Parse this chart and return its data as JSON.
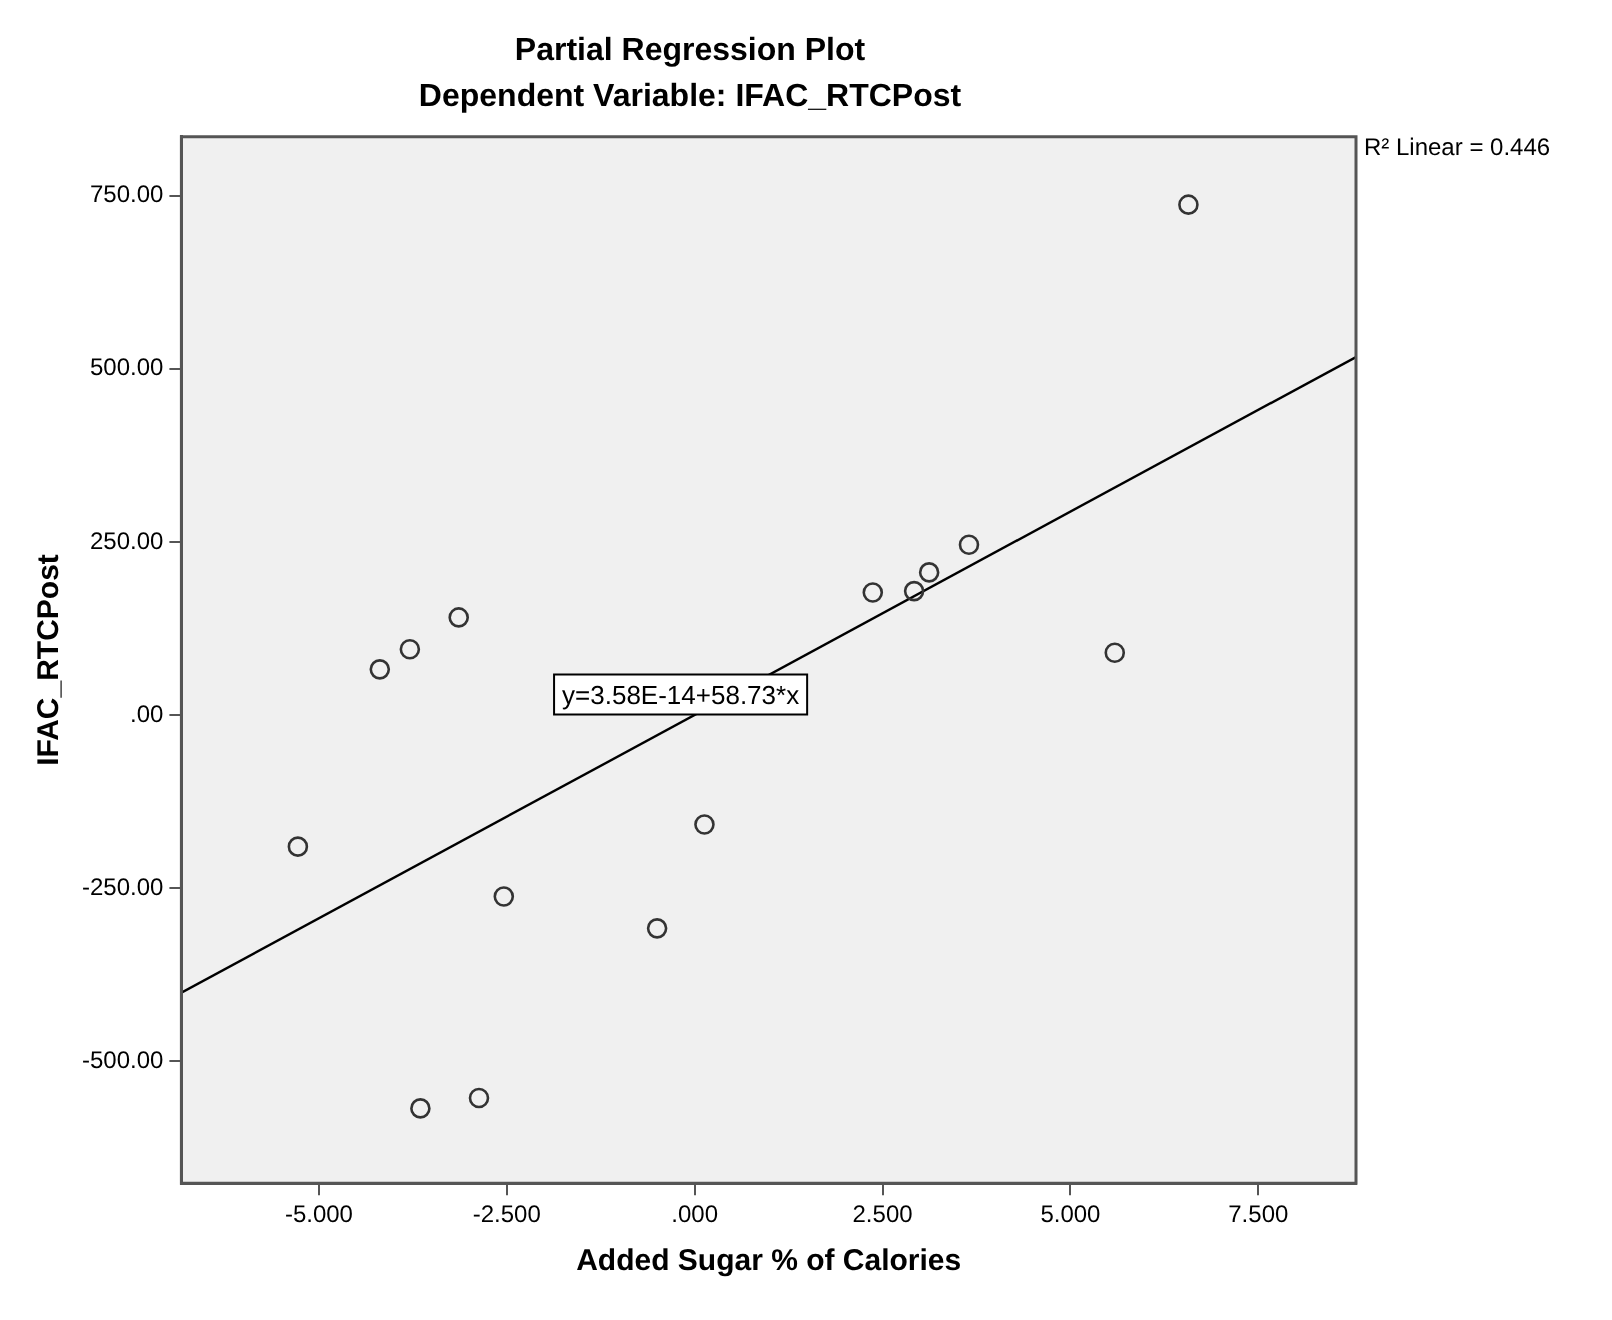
{
  "chart_data": {
    "type": "scatter",
    "title": "Partial Regression Plot",
    "subtitle": "Dependent Variable: IFAC_RTCPost",
    "xlabel": "Added Sugar % of Calories",
    "ylabel": "IFAC_RTCPost",
    "annotations": [
      "R² Linear = 0.446",
      "y=3.58E-14+58.73*x"
    ],
    "series": [
      {
        "type": "scatter",
        "color": "#333333",
        "marker": "circle",
        "x": [
          6.57,
          5.59,
          2.37,
          2.92,
          3.12,
          3.65,
          -4.19,
          -3.79,
          -3.14,
          -5.28,
          -2.54,
          -0.5,
          0.13,
          -3.65,
          -2.87
        ],
        "values": [
          737,
          90,
          177,
          179,
          206,
          246,
          66,
          95,
          141,
          -190,
          -262,
          -308,
          -158,
          -568,
          -553
        ]
      },
      {
        "type": "line",
        "color": "#000000",
        "marker": "none",
        "x": [
          -6.83,
          8.8
        ],
        "values": [
          -401,
          517
        ]
      }
    ],
    "xlim": [
      -6.83,
      8.8
    ],
    "ylim": [
      -676,
      835
    ],
    "xticks": [
      {
        "value": -5,
        "label": "-5.000"
      },
      {
        "value": -2.5,
        "label": "-2.500"
      },
      {
        "value": 0,
        "label": ".000"
      },
      {
        "value": 2.5,
        "label": "2.500"
      },
      {
        "value": 5,
        "label": "5.000"
      },
      {
        "value": 7.5,
        "label": "7.500"
      }
    ],
    "yticks": [
      {
        "value": -500,
        "label": "-500.00"
      },
      {
        "value": -250,
        "label": "-250.00"
      },
      {
        "value": 0,
        "label": ".00"
      },
      {
        "value": 250,
        "label": "250.00"
      },
      {
        "value": 500,
        "label": "500.00"
      },
      {
        "value": 750,
        "label": "750.00"
      }
    ],
    "grid": false,
    "legend": false
  }
}
